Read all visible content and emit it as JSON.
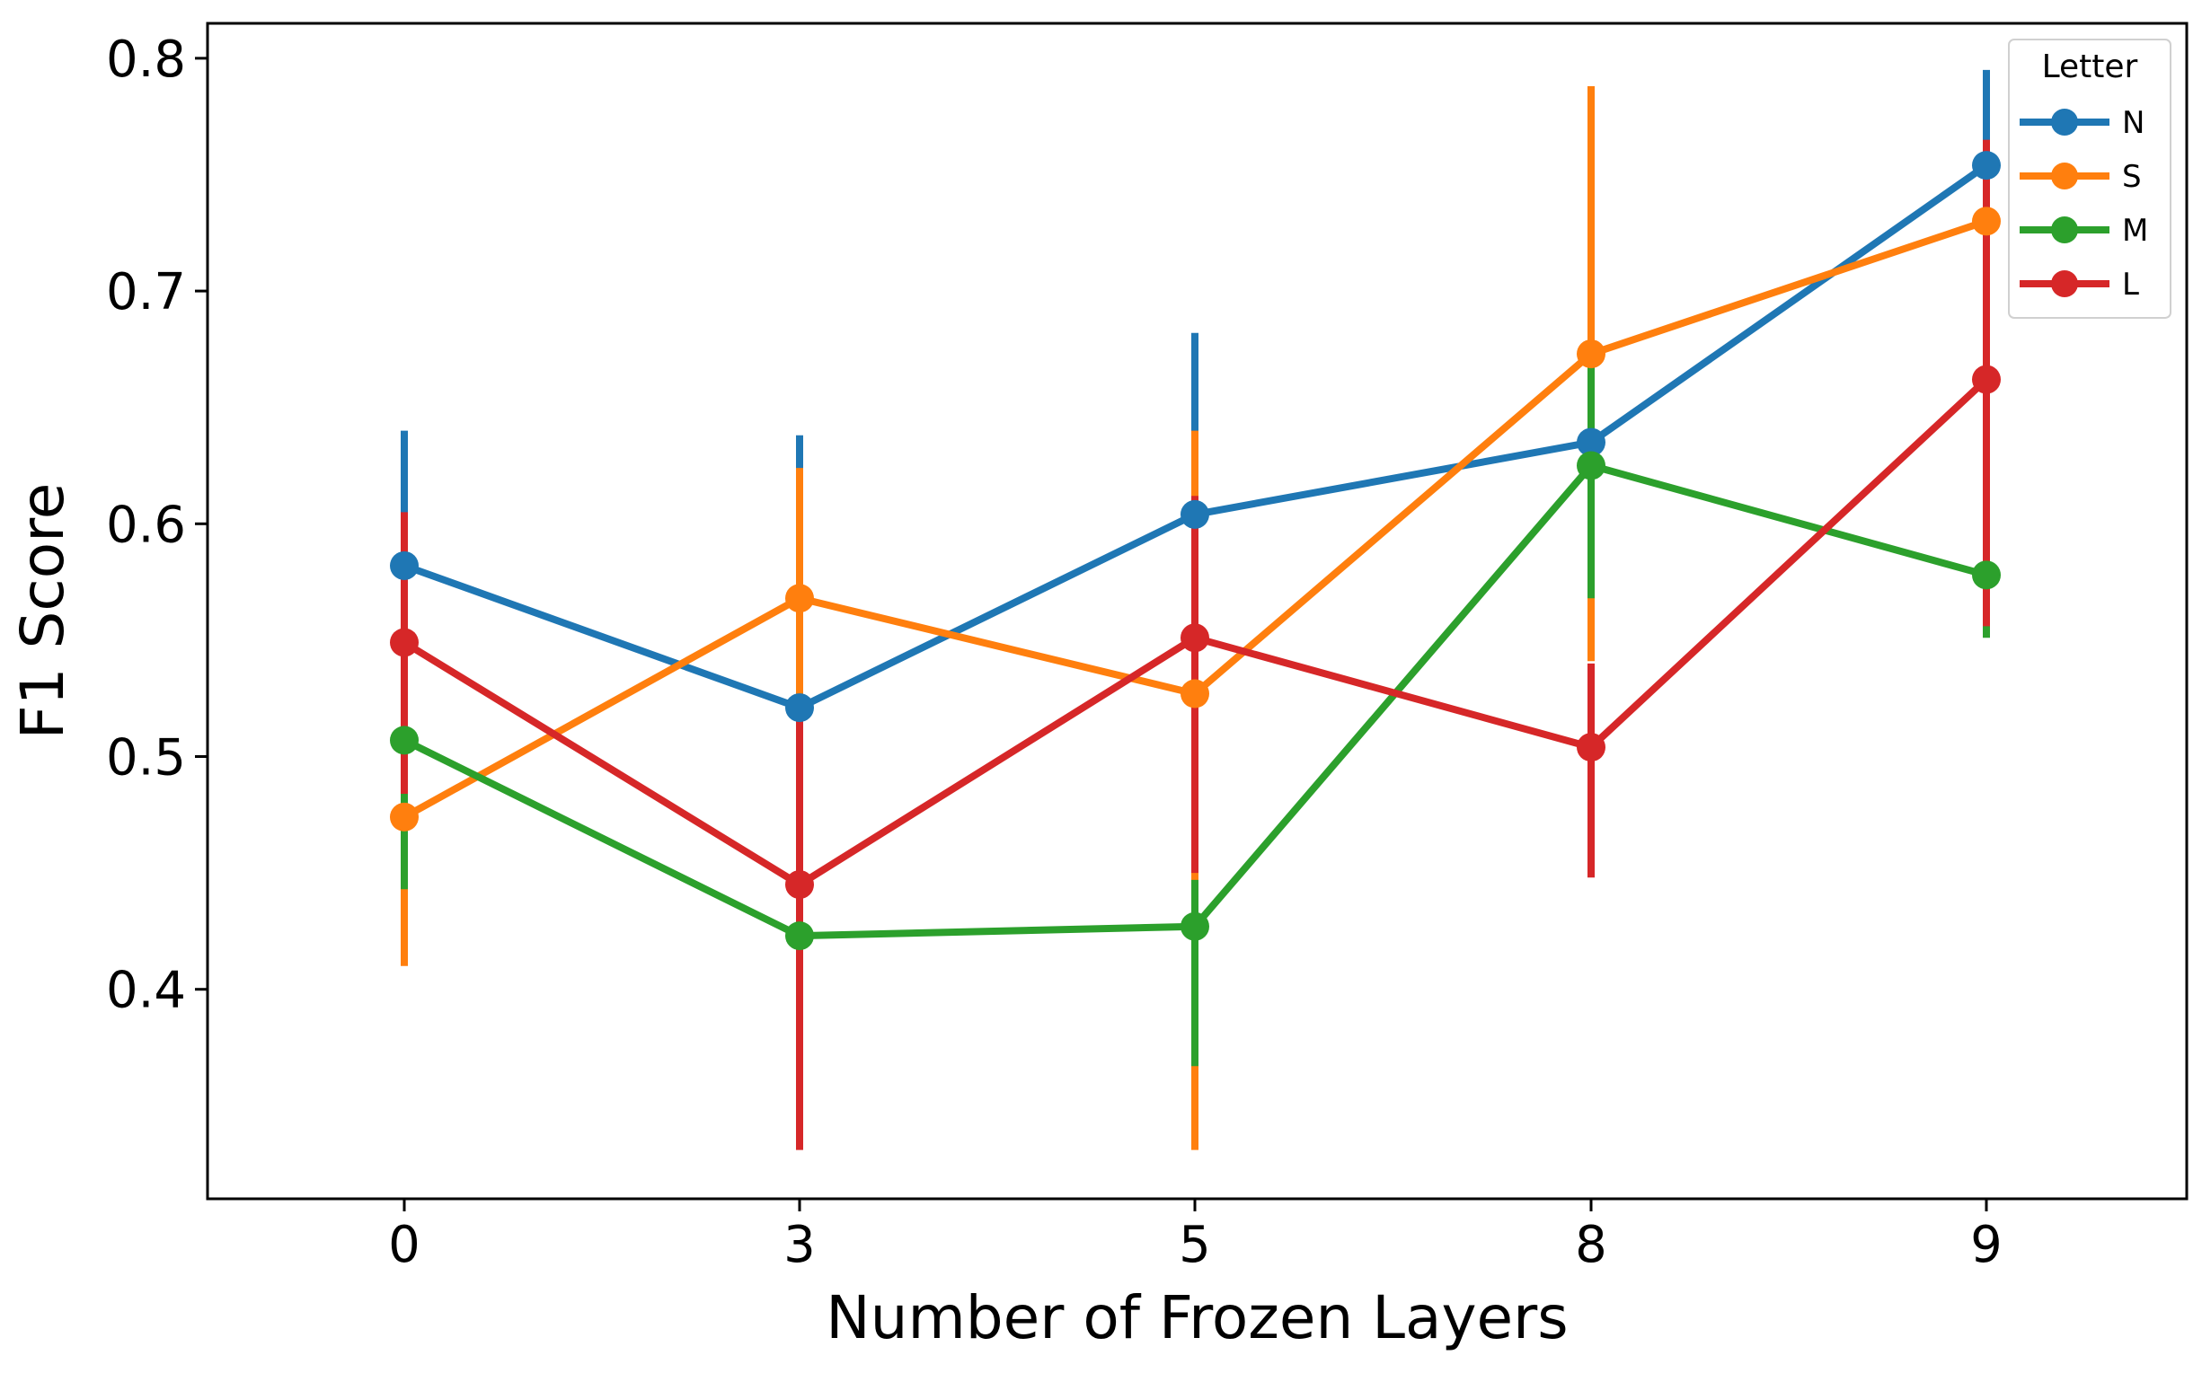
{
  "chart_data": {
    "type": "line",
    "xlabel": "Number of Frozen Layers",
    "ylabel": "F1 Score",
    "categories": [
      "0",
      "3",
      "5",
      "8",
      "9"
    ],
    "ylim": [
      0.31,
      0.815
    ],
    "yticks": [
      0.4,
      0.5,
      0.6,
      0.7,
      0.8
    ],
    "ytick_labels": [
      "0.4",
      "0.5",
      "0.6",
      "0.7",
      "0.8"
    ],
    "grid": false,
    "legend": {
      "title": "Letter",
      "position": "top-right"
    },
    "series": [
      {
        "name": "N",
        "color": "#1f77b4",
        "values": [
          0.582,
          0.521,
          0.604,
          0.635,
          0.754
        ],
        "ci_low": [
          0.524,
          0.412,
          0.528,
          0.598,
          0.712
        ],
        "ci_high": [
          0.64,
          0.638,
          0.682,
          0.672,
          0.795
        ]
      },
      {
        "name": "S",
        "color": "#ff7f0e",
        "values": [
          0.474,
          0.568,
          0.527,
          0.673,
          0.73
        ],
        "ci_low": [
          0.41,
          0.502,
          0.331,
          0.541,
          0.68
        ],
        "ci_high": [
          0.538,
          0.624,
          0.64,
          0.788,
          0.761
        ]
      },
      {
        "name": "M",
        "color": "#2ca02c",
        "values": [
          0.507,
          0.423,
          0.427,
          0.625,
          0.578
        ],
        "ci_low": [
          0.443,
          0.36,
          0.367,
          0.568,
          0.551
        ],
        "ci_high": [
          0.568,
          0.48,
          0.447,
          0.671,
          0.605
        ]
      },
      {
        "name": "L",
        "color": "#d62728",
        "values": [
          0.549,
          0.445,
          0.551,
          0.504,
          0.662
        ],
        "ci_low": [
          0.484,
          0.331,
          0.45,
          0.448,
          0.556
        ],
        "ci_high": [
          0.605,
          0.524,
          0.612,
          0.54,
          0.765
        ]
      }
    ]
  }
}
